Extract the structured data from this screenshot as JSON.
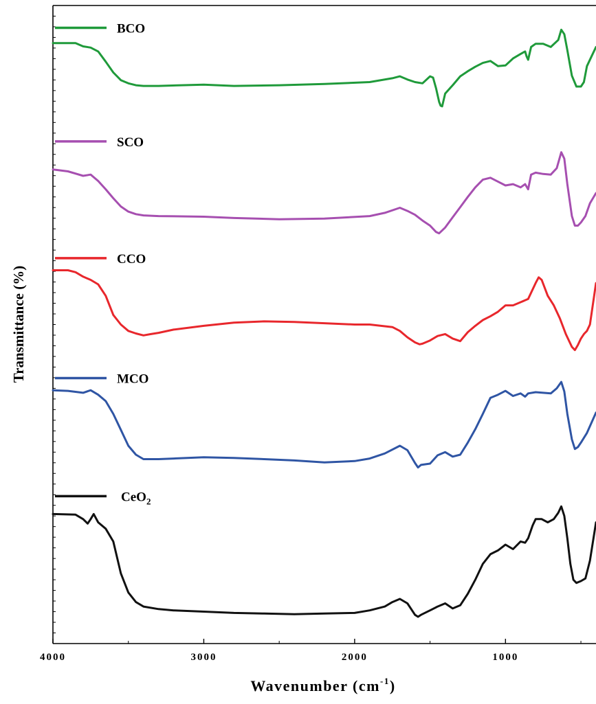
{
  "chart_data": {
    "type": "line",
    "xlabel": "Wavenumber (cm",
    "xlabel_sup": "-1",
    "xlabel_tail": ")",
    "ylabel": "Transmittance (%)",
    "xlim": [
      4000,
      400
    ],
    "x_reversed": true,
    "x_ticks": [
      4000,
      3000,
      2000,
      1000
    ],
    "x_tick_labels": [
      "4000",
      "3000",
      "2000",
      "1000"
    ],
    "y_tick_labels": false,
    "grid": false,
    "legend_placement": "inline-left",
    "series": [
      {
        "name": "BCO",
        "name_main": "BCO",
        "name_sub": "",
        "color": "#1f9a3a",
        "legend_y": 0.965,
        "points": [
          [
            4000,
            0.941
          ],
          [
            3850,
            0.941
          ],
          [
            3800,
            0.936
          ],
          [
            3750,
            0.934
          ],
          [
            3700,
            0.928
          ],
          [
            3650,
            0.912
          ],
          [
            3600,
            0.895
          ],
          [
            3550,
            0.883
          ],
          [
            3500,
            0.878
          ],
          [
            3450,
            0.875
          ],
          [
            3400,
            0.874
          ],
          [
            3300,
            0.874
          ],
          [
            3000,
            0.876
          ],
          [
            2800,
            0.874
          ],
          [
            2500,
            0.875
          ],
          [
            2200,
            0.877
          ],
          [
            1900,
            0.88
          ],
          [
            1750,
            0.886
          ],
          [
            1700,
            0.889
          ],
          [
            1650,
            0.884
          ],
          [
            1600,
            0.88
          ],
          [
            1550,
            0.878
          ],
          [
            1500,
            0.889
          ],
          [
            1480,
            0.887
          ],
          [
            1460,
            0.87
          ],
          [
            1440,
            0.849
          ],
          [
            1430,
            0.843
          ],
          [
            1420,
            0.842
          ],
          [
            1400,
            0.862
          ],
          [
            1350,
            0.875
          ],
          [
            1300,
            0.889
          ],
          [
            1250,
            0.897
          ],
          [
            1200,
            0.904
          ],
          [
            1150,
            0.91
          ],
          [
            1100,
            0.913
          ],
          [
            1050,
            0.905
          ],
          [
            1000,
            0.906
          ],
          [
            950,
            0.917
          ],
          [
            900,
            0.924
          ],
          [
            870,
            0.928
          ],
          [
            860,
            0.92
          ],
          [
            850,
            0.915
          ],
          [
            830,
            0.935
          ],
          [
            800,
            0.94
          ],
          [
            750,
            0.94
          ],
          [
            700,
            0.935
          ],
          [
            650,
            0.946
          ],
          [
            630,
            0.962
          ],
          [
            610,
            0.955
          ],
          [
            590,
            0.93
          ],
          [
            560,
            0.89
          ],
          [
            530,
            0.873
          ],
          [
            500,
            0.873
          ],
          [
            480,
            0.88
          ],
          [
            460,
            0.905
          ],
          [
            430,
            0.92
          ],
          [
            400,
            0.935
          ]
        ]
      },
      {
        "name": "SCO",
        "name_main": "SCO",
        "name_sub": "",
        "color": "#a64fb0",
        "legend_y": 0.787,
        "points": [
          [
            4000,
            0.743
          ],
          [
            3900,
            0.74
          ],
          [
            3800,
            0.733
          ],
          [
            3750,
            0.735
          ],
          [
            3700,
            0.725
          ],
          [
            3650,
            0.712
          ],
          [
            3600,
            0.698
          ],
          [
            3550,
            0.685
          ],
          [
            3500,
            0.677
          ],
          [
            3450,
            0.673
          ],
          [
            3400,
            0.671
          ],
          [
            3300,
            0.67
          ],
          [
            3000,
            0.669
          ],
          [
            2800,
            0.667
          ],
          [
            2500,
            0.665
          ],
          [
            2200,
            0.666
          ],
          [
            1900,
            0.67
          ],
          [
            1800,
            0.675
          ],
          [
            1700,
            0.683
          ],
          [
            1650,
            0.678
          ],
          [
            1600,
            0.672
          ],
          [
            1550,
            0.663
          ],
          [
            1500,
            0.655
          ],
          [
            1460,
            0.645
          ],
          [
            1440,
            0.643
          ],
          [
            1400,
            0.652
          ],
          [
            1350,
            0.668
          ],
          [
            1300,
            0.684
          ],
          [
            1250,
            0.7
          ],
          [
            1200,
            0.715
          ],
          [
            1150,
            0.727
          ],
          [
            1100,
            0.73
          ],
          [
            1050,
            0.724
          ],
          [
            1000,
            0.718
          ],
          [
            950,
            0.72
          ],
          [
            900,
            0.715
          ],
          [
            870,
            0.72
          ],
          [
            850,
            0.712
          ],
          [
            830,
            0.735
          ],
          [
            800,
            0.738
          ],
          [
            750,
            0.736
          ],
          [
            700,
            0.735
          ],
          [
            660,
            0.745
          ],
          [
            630,
            0.77
          ],
          [
            610,
            0.76
          ],
          [
            590,
            0.72
          ],
          [
            560,
            0.67
          ],
          [
            540,
            0.655
          ],
          [
            520,
            0.655
          ],
          [
            500,
            0.66
          ],
          [
            470,
            0.67
          ],
          [
            440,
            0.69
          ],
          [
            400,
            0.706
          ]
        ]
      },
      {
        "name": "CCO",
        "name_main": "CCO",
        "name_sub": "",
        "color": "#e8272c",
        "legend_y": 0.604,
        "points": [
          [
            4000,
            0.585
          ],
          [
            3900,
            0.585
          ],
          [
            3850,
            0.582
          ],
          [
            3800,
            0.575
          ],
          [
            3750,
            0.57
          ],
          [
            3700,
            0.563
          ],
          [
            3650,
            0.545
          ],
          [
            3600,
            0.515
          ],
          [
            3550,
            0.5
          ],
          [
            3500,
            0.49
          ],
          [
            3450,
            0.486
          ],
          [
            3400,
            0.483
          ],
          [
            3350,
            0.485
          ],
          [
            3300,
            0.487
          ],
          [
            3200,
            0.492
          ],
          [
            3000,
            0.498
          ],
          [
            2800,
            0.503
          ],
          [
            2600,
            0.505
          ],
          [
            2400,
            0.504
          ],
          [
            2200,
            0.502
          ],
          [
            2000,
            0.5
          ],
          [
            1900,
            0.5
          ],
          [
            1750,
            0.496
          ],
          [
            1700,
            0.49
          ],
          [
            1650,
            0.48
          ],
          [
            1600,
            0.472
          ],
          [
            1570,
            0.469
          ],
          [
            1550,
            0.47
          ],
          [
            1500,
            0.475
          ],
          [
            1450,
            0.482
          ],
          [
            1400,
            0.485
          ],
          [
            1350,
            0.478
          ],
          [
            1300,
            0.474
          ],
          [
            1250,
            0.488
          ],
          [
            1200,
            0.498
          ],
          [
            1150,
            0.507
          ],
          [
            1100,
            0.513
          ],
          [
            1050,
            0.52
          ],
          [
            1000,
            0.53
          ],
          [
            950,
            0.53
          ],
          [
            900,
            0.535
          ],
          [
            850,
            0.54
          ],
          [
            800,
            0.565
          ],
          [
            780,
            0.574
          ],
          [
            760,
            0.57
          ],
          [
            720,
            0.545
          ],
          [
            680,
            0.53
          ],
          [
            640,
            0.51
          ],
          [
            600,
            0.485
          ],
          [
            560,
            0.465
          ],
          [
            540,
            0.46
          ],
          [
            520,
            0.468
          ],
          [
            500,
            0.478
          ],
          [
            480,
            0.485
          ],
          [
            460,
            0.49
          ],
          [
            440,
            0.5
          ],
          [
            400,
            0.565
          ]
        ]
      },
      {
        "name": "MCO",
        "name_main": "MCO",
        "name_sub": "",
        "color": "#2f55a4",
        "legend_y": 0.416,
        "points": [
          [
            4000,
            0.397
          ],
          [
            3900,
            0.396
          ],
          [
            3800,
            0.393
          ],
          [
            3750,
            0.397
          ],
          [
            3700,
            0.39
          ],
          [
            3650,
            0.38
          ],
          [
            3600,
            0.36
          ],
          [
            3550,
            0.335
          ],
          [
            3500,
            0.31
          ],
          [
            3450,
            0.296
          ],
          [
            3400,
            0.289
          ],
          [
            3300,
            0.289
          ],
          [
            3200,
            0.29
          ],
          [
            3000,
            0.292
          ],
          [
            2800,
            0.291
          ],
          [
            2600,
            0.289
          ],
          [
            2400,
            0.287
          ],
          [
            2200,
            0.284
          ],
          [
            2000,
            0.286
          ],
          [
            1900,
            0.29
          ],
          [
            1800,
            0.298
          ],
          [
            1700,
            0.31
          ],
          [
            1650,
            0.303
          ],
          [
            1600,
            0.283
          ],
          [
            1580,
            0.276
          ],
          [
            1560,
            0.28
          ],
          [
            1500,
            0.282
          ],
          [
            1450,
            0.295
          ],
          [
            1400,
            0.3
          ],
          [
            1350,
            0.293
          ],
          [
            1300,
            0.296
          ],
          [
            1250,
            0.315
          ],
          [
            1200,
            0.336
          ],
          [
            1150,
            0.36
          ],
          [
            1100,
            0.385
          ],
          [
            1050,
            0.39
          ],
          [
            1000,
            0.396
          ],
          [
            950,
            0.388
          ],
          [
            900,
            0.392
          ],
          [
            870,
            0.387
          ],
          [
            850,
            0.392
          ],
          [
            800,
            0.394
          ],
          [
            700,
            0.392
          ],
          [
            660,
            0.4
          ],
          [
            630,
            0.41
          ],
          [
            610,
            0.395
          ],
          [
            590,
            0.36
          ],
          [
            560,
            0.32
          ],
          [
            540,
            0.305
          ],
          [
            520,
            0.308
          ],
          [
            500,
            0.315
          ],
          [
            460,
            0.33
          ],
          [
            400,
            0.362
          ]
        ]
      },
      {
        "name": "CeO2",
        "name_main": "CeO",
        "name_sub": "2",
        "color": "#111111",
        "legend_y": 0.231,
        "points": [
          [
            4000,
            0.203
          ],
          [
            3850,
            0.202
          ],
          [
            3800,
            0.195
          ],
          [
            3770,
            0.188
          ],
          [
            3750,
            0.195
          ],
          [
            3730,
            0.203
          ],
          [
            3700,
            0.19
          ],
          [
            3650,
            0.18
          ],
          [
            3600,
            0.16
          ],
          [
            3550,
            0.11
          ],
          [
            3500,
            0.08
          ],
          [
            3450,
            0.065
          ],
          [
            3400,
            0.058
          ],
          [
            3300,
            0.054
          ],
          [
            3200,
            0.052
          ],
          [
            3000,
            0.05
          ],
          [
            2800,
            0.048
          ],
          [
            2600,
            0.047
          ],
          [
            2400,
            0.046
          ],
          [
            2200,
            0.047
          ],
          [
            2000,
            0.048
          ],
          [
            1900,
            0.052
          ],
          [
            1800,
            0.058
          ],
          [
            1750,
            0.065
          ],
          [
            1700,
            0.07
          ],
          [
            1650,
            0.063
          ],
          [
            1600,
            0.045
          ],
          [
            1580,
            0.042
          ],
          [
            1560,
            0.045
          ],
          [
            1500,
            0.052
          ],
          [
            1450,
            0.058
          ],
          [
            1400,
            0.063
          ],
          [
            1350,
            0.055
          ],
          [
            1300,
            0.06
          ],
          [
            1250,
            0.078
          ],
          [
            1200,
            0.1
          ],
          [
            1150,
            0.125
          ],
          [
            1100,
            0.14
          ],
          [
            1050,
            0.146
          ],
          [
            1000,
            0.155
          ],
          [
            950,
            0.148
          ],
          [
            900,
            0.16
          ],
          [
            870,
            0.158
          ],
          [
            850,
            0.165
          ],
          [
            820,
            0.185
          ],
          [
            800,
            0.195
          ],
          [
            760,
            0.195
          ],
          [
            720,
            0.19
          ],
          [
            680,
            0.195
          ],
          [
            650,
            0.205
          ],
          [
            630,
            0.215
          ],
          [
            610,
            0.2
          ],
          [
            590,
            0.165
          ],
          [
            570,
            0.125
          ],
          [
            550,
            0.1
          ],
          [
            530,
            0.095
          ],
          [
            500,
            0.098
          ],
          [
            470,
            0.102
          ],
          [
            440,
            0.13
          ],
          [
            400,
            0.19
          ]
        ]
      }
    ]
  }
}
